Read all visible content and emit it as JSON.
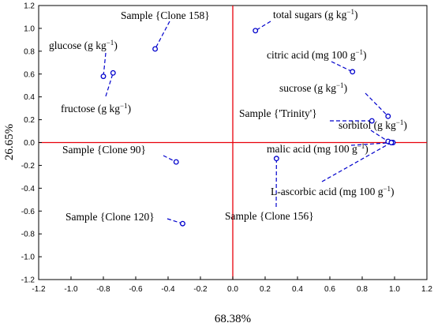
{
  "chart_data": {
    "type": "scatter",
    "title": "",
    "xlabel": "68.38%",
    "ylabel": "26.65%",
    "xlim": [
      -1.2,
      1.2
    ],
    "ylim": [
      -1.2,
      1.2
    ],
    "x_ticks": [
      "-1.2",
      "-1.0",
      "-0.8",
      "-0.6",
      "-0.4",
      "-0.2",
      "0.0",
      "0.2",
      "0.4",
      "0.6",
      "0.8",
      "1.0",
      "1.2"
    ],
    "y_ticks": [
      "1.2",
      "1.0",
      "0.8",
      "0.6",
      "0.4",
      "0.2",
      "0.0",
      "-0.2",
      "-0.4",
      "-0.6",
      "-0.8",
      "-1.0",
      "-1.2"
    ],
    "grid": false,
    "reference_lines": {
      "x": 0,
      "y": 0,
      "color": "#e8000b"
    },
    "marker_color": "#0000cc",
    "points": [
      {
        "x": 0.14,
        "y": 0.98,
        "label": "total sugars (g kg",
        "sup": "−1",
        "tail": ")"
      },
      {
        "x": -0.48,
        "y": 0.82,
        "label": "Sample {Clone 158}",
        "sup": "",
        "tail": ""
      },
      {
        "x": -0.8,
        "y": 0.58,
        "label": "glucose (g kg",
        "sup": "−1",
        "tail": ")"
      },
      {
        "x": -0.74,
        "y": 0.61,
        "label": "fructose (g kg",
        "sup": "−1",
        "tail": ")"
      },
      {
        "x": 0.74,
        "y": 0.62,
        "label": "citric acid (mg 100 g",
        "sup": "−1",
        "tail": ")"
      },
      {
        "x": 0.96,
        "y": 0.23,
        "label": "sucrose (g kg",
        "sup": "−1",
        "tail": ")"
      },
      {
        "x": 0.86,
        "y": 0.19,
        "label": "Sample {'Trinity'}",
        "sup": "",
        "tail": ""
      },
      {
        "x": 0.96,
        "y": 0.01,
        "label": "sorbitol (g kg",
        "sup": "−1",
        "tail": ")"
      },
      {
        "x": 0.99,
        "y": 0.0,
        "label": "malic acid (mg 100 g",
        "sup": "−1",
        "tail": ")"
      },
      {
        "x": 0.98,
        "y": 0.0,
        "label": "L-ascorbic acid (mg 100 g",
        "sup": "−1",
        "tail": ")"
      },
      {
        "x": -0.35,
        "y": -0.17,
        "label": "Sample {Clone 90}",
        "sup": "",
        "tail": ""
      },
      {
        "x": 0.27,
        "y": -0.14,
        "label": "Sample {Clone 156}",
        "sup": "",
        "tail": ""
      },
      {
        "x": -0.31,
        "y": -0.71,
        "label": "Sample {Clone 120}",
        "sup": "",
        "tail": ""
      }
    ]
  }
}
